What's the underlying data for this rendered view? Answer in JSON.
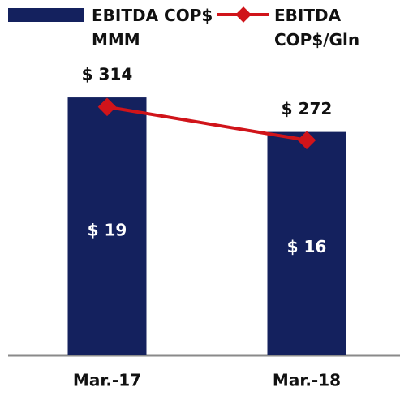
{
  "chart_data": {
    "type": "bar-line",
    "categories": [
      "Mar.-17",
      "Mar.-18"
    ],
    "series": [
      {
        "name": "EBITDA COP$ MMM",
        "color": "#14215e",
        "type": "bar",
        "values": [
          314,
          272
        ],
        "value_labels": [
          "$ 314",
          "$ 272"
        ]
      },
      {
        "name": "EBITDA COP$/Gln",
        "color": "#d0141a",
        "type": "line",
        "axis": "y2",
        "values": [
          19,
          16
        ],
        "value_labels": [
          "$ 19",
          "$ 16"
        ]
      }
    ],
    "ylim": [
      0,
      320
    ],
    "y2lim": [
      -3.4,
      20.3
    ],
    "grid": false
  }
}
